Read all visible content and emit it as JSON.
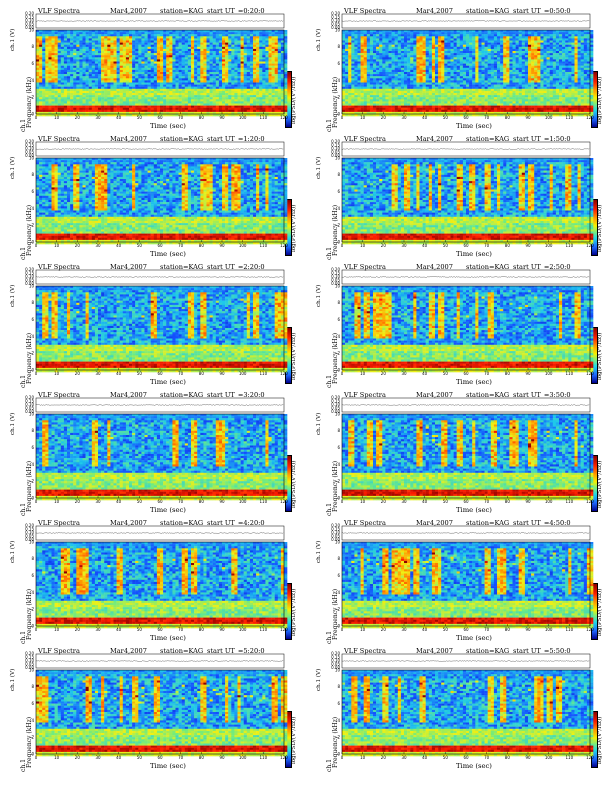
{
  "header": {
    "left_title": "VLF Spectra",
    "date": "Mar4,2007",
    "station": "station=KAG",
    "start_prefix": "start  UT"
  },
  "axes": {
    "channel_label": "ch.1 (V)",
    "freq_label": "Frequency  (kHz)",
    "freq_ch_label": "ch.1",
    "x_label": "Time  (sec)",
    "colorbar_label": "log(PSD/(V²/Hz))"
  },
  "chart_data": [
    {
      "type": "heatmap",
      "start_ut": "=0:20:0",
      "xlim": [
        0,
        120
      ],
      "ylim": [
        0,
        10
      ],
      "channel_ylim": [
        0,
        0.2
      ],
      "seed": 11,
      "burst": 0.8
    },
    {
      "type": "heatmap",
      "start_ut": "=0:50:0",
      "xlim": [
        0,
        120
      ],
      "ylim": [
        0,
        10
      ],
      "channel_ylim": [
        0,
        0.2
      ],
      "seed": 23,
      "burst": 0.5
    },
    {
      "type": "heatmap",
      "start_ut": "=1:20:0",
      "xlim": [
        0,
        120
      ],
      "ylim": [
        0,
        10
      ],
      "channel_ylim": [
        0,
        0.2
      ],
      "seed": 37,
      "burst": 0.6
    },
    {
      "type": "heatmap",
      "start_ut": "=1:50:0",
      "xlim": [
        0,
        120
      ],
      "ylim": [
        0,
        10
      ],
      "channel_ylim": [
        0,
        0.2
      ],
      "seed": 41,
      "burst": 0.5
    },
    {
      "type": "heatmap",
      "start_ut": "=2:20:0",
      "xlim": [
        0,
        120
      ],
      "ylim": [
        0,
        10
      ],
      "channel_ylim": [
        0,
        0.2
      ],
      "seed": 53,
      "burst": 0.3
    },
    {
      "type": "heatmap",
      "start_ut": "=2:50:0",
      "xlim": [
        0,
        120
      ],
      "ylim": [
        0,
        10
      ],
      "channel_ylim": [
        0,
        0.2
      ],
      "seed": 67,
      "burst": 0.5
    },
    {
      "type": "heatmap",
      "start_ut": "=3:20:0",
      "xlim": [
        0,
        120
      ],
      "ylim": [
        0,
        10
      ],
      "channel_ylim": [
        0,
        0.2
      ],
      "seed": 71,
      "burst": 0.3
    },
    {
      "type": "heatmap",
      "start_ut": "=3:50:0",
      "xlim": [
        0,
        120
      ],
      "ylim": [
        0,
        10
      ],
      "channel_ylim": [
        0,
        0.2
      ],
      "seed": 83,
      "burst": 0.5
    },
    {
      "type": "heatmap",
      "start_ut": "=4:20:0",
      "xlim": [
        0,
        120
      ],
      "ylim": [
        0,
        10
      ],
      "channel_ylim": [
        0,
        0.2
      ],
      "seed": 97,
      "burst": 0.4
    },
    {
      "type": "heatmap",
      "start_ut": "=4:50:0",
      "xlim": [
        0,
        120
      ],
      "ylim": [
        0,
        10
      ],
      "channel_ylim": [
        0,
        0.2
      ],
      "seed": 101,
      "burst": 0.6
    },
    {
      "type": "heatmap",
      "start_ut": "=5:20:0",
      "xlim": [
        0,
        120
      ],
      "ylim": [
        0,
        10
      ],
      "channel_ylim": [
        0,
        0.2
      ],
      "seed": 113,
      "burst": 0.7
    },
    {
      "type": "heatmap",
      "start_ut": "=5:50:0",
      "xlim": [
        0,
        120
      ],
      "ylim": [
        0,
        10
      ],
      "channel_ylim": [
        0,
        0.2
      ],
      "seed": 127,
      "burst": 0.6
    }
  ]
}
